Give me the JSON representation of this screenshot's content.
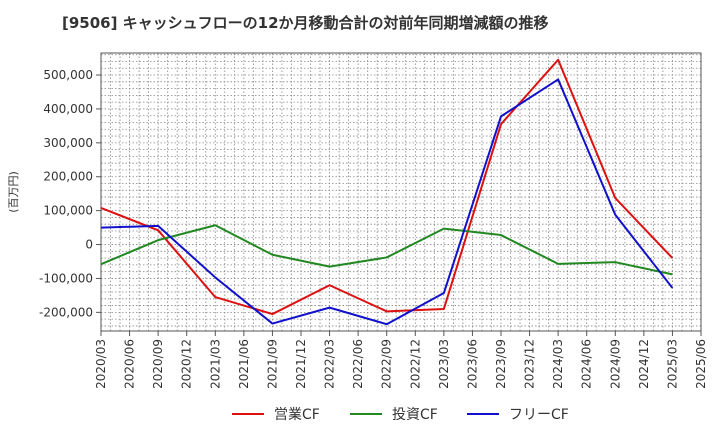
{
  "chart_data": {
    "type": "line",
    "title": "[9506]  キャッシュフローの12か月移動合計の対前年同期増減額の推移",
    "ylabel": "(百万円)",
    "xlabel": "",
    "ylim": [
      -255000,
      565000
    ],
    "yticks": [
      500000,
      400000,
      300000,
      200000,
      100000,
      0,
      -100000,
      -200000
    ],
    "ytick_labels": [
      "500,000",
      "400,000",
      "300,000",
      "200,000",
      "100,000",
      "0",
      "-100,000",
      "-200,000"
    ],
    "x": [
      "2020/03",
      "2020/06",
      "2020/09",
      "2020/12",
      "2021/03",
      "2021/06",
      "2021/09",
      "2021/12",
      "2022/03",
      "2022/06",
      "2022/09",
      "2022/12",
      "2023/03",
      "2023/06",
      "2023/09",
      "2023/12",
      "2024/03",
      "2024/06",
      "2024/09",
      "2024/12",
      "2025/03",
      "2025/06"
    ],
    "grid": true,
    "legend_position": "bottom",
    "series": [
      {
        "name": "営業CF",
        "color": "#dd1111",
        "points": [
          [
            "2020/03",
            108000
          ],
          [
            "2020/09",
            42000
          ],
          [
            "2021/03",
            -155000
          ],
          [
            "2021/09",
            -205000
          ],
          [
            "2022/03",
            -120000
          ],
          [
            "2022/09",
            -197000
          ],
          [
            "2023/03",
            -190000
          ],
          [
            "2023/09",
            355000
          ],
          [
            "2024/03",
            545000
          ],
          [
            "2024/09",
            137000
          ],
          [
            "2025/03",
            -40000
          ]
        ]
      },
      {
        "name": "投資CF",
        "color": "#228822",
        "points": [
          [
            "2020/03",
            -58000
          ],
          [
            "2020/09",
            13000
          ],
          [
            "2021/03",
            57000
          ],
          [
            "2021/09",
            -30000
          ],
          [
            "2022/03",
            -65000
          ],
          [
            "2022/09",
            -38000
          ],
          [
            "2023/03",
            47000
          ],
          [
            "2023/09",
            28000
          ],
          [
            "2024/03",
            -57000
          ],
          [
            "2024/09",
            -52000
          ],
          [
            "2025/03",
            -88000
          ]
        ]
      },
      {
        "name": "フリーCF",
        "color": "#1111cc",
        "points": [
          [
            "2020/03",
            50000
          ],
          [
            "2020/09",
            55000
          ],
          [
            "2021/03",
            -97000
          ],
          [
            "2021/09",
            -233000
          ],
          [
            "2022/03",
            -186000
          ],
          [
            "2022/09",
            -235000
          ],
          [
            "2023/03",
            -143000
          ],
          [
            "2023/09",
            378000
          ],
          [
            "2024/03",
            487000
          ],
          [
            "2024/09",
            88000
          ],
          [
            "2025/03",
            -128000
          ]
        ]
      }
    ]
  }
}
